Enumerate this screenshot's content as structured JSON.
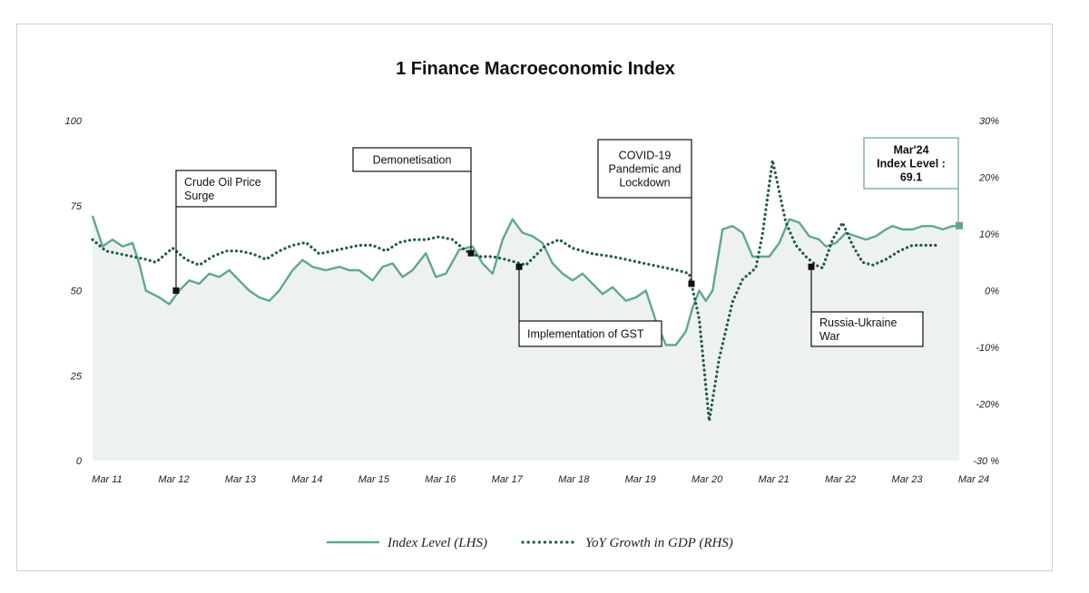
{
  "chart_data": {
    "type": "line",
    "title": "1 Finance Macroeconomic Index",
    "xlabel": "",
    "ylabel_left": "",
    "ylabel_right": "",
    "x_ticks": [
      "Mar 11",
      "Mar 12",
      "Mar 13",
      "Mar 14",
      "Mar 15",
      "Mar 16",
      "Mar 17",
      "Mar 18",
      "Mar 19",
      "Mar 20",
      "Mar 21",
      "Mar 22",
      "Mar 23",
      "Mar 24"
    ],
    "y_left_ticks": [
      "0",
      "25",
      "50",
      "75",
      "100"
    ],
    "y_left_lim": [
      0,
      100
    ],
    "y_right_ticks": [
      "-30 %",
      "-20%",
      "-10%",
      "0%",
      "10%",
      "20%",
      "30%"
    ],
    "y_right_lim": [
      -30,
      30
    ],
    "grid": false,
    "legend_position": "bottom-center",
    "series": [
      {
        "name": "Index Level (LHS)",
        "axis": "left",
        "style": "solid",
        "color": "#5fa88e",
        "x": [
          2011.0,
          2011.15,
          2011.3,
          2011.45,
          2011.6,
          2011.7,
          2011.8,
          2012.0,
          2012.15,
          2012.3,
          2012.45,
          2012.6,
          2012.75,
          2012.9,
          2013.05,
          2013.2,
          2013.35,
          2013.5,
          2013.65,
          2013.8,
          2014.0,
          2014.15,
          2014.3,
          2014.5,
          2014.7,
          2014.85,
          2015.0,
          2015.2,
          2015.35,
          2015.5,
          2015.65,
          2015.8,
          2016.0,
          2016.15,
          2016.3,
          2016.5,
          2016.7,
          2016.85,
          2017.0,
          2017.15,
          2017.3,
          2017.45,
          2017.6,
          2017.75,
          2017.9,
          2018.05,
          2018.2,
          2018.35,
          2018.5,
          2018.65,
          2018.8,
          2019.0,
          2019.15,
          2019.3,
          2019.45,
          2019.6,
          2019.75,
          2019.9,
          2020.0,
          2020.1,
          2020.2,
          2020.3,
          2020.45,
          2020.6,
          2020.75,
          2020.9,
          2021.0,
          2021.15,
          2021.3,
          2021.45,
          2021.6,
          2021.75,
          2021.9,
          2022.0,
          2022.15,
          2022.3,
          2022.45,
          2022.6,
          2022.75,
          2022.9,
          2023.0,
          2023.15,
          2023.3,
          2023.45,
          2023.6,
          2023.75,
          2023.9,
          2024.0
        ],
        "values": [
          72,
          63,
          65,
          63,
          64,
          58,
          50,
          48,
          46,
          50,
          53,
          52,
          55,
          54,
          56,
          53,
          50,
          48,
          47,
          50,
          56,
          59,
          57,
          56,
          57,
          56,
          56,
          53,
          57,
          58,
          54,
          56,
          61,
          54,
          55,
          62,
          63,
          58,
          55,
          65,
          71,
          67,
          66,
          64,
          58,
          55,
          53,
          55,
          52,
          49,
          51,
          47,
          48,
          50,
          41,
          34,
          34,
          38,
          45,
          50,
          47,
          50,
          68,
          69,
          67,
          60,
          60,
          60,
          64,
          71,
          70,
          66,
          65,
          63,
          64,
          67,
          66,
          65,
          66,
          68,
          69,
          68,
          68,
          69,
          69,
          68,
          69,
          69
        ],
        "end_label": {
          "x": 2024.0,
          "value": 69.1
        }
      },
      {
        "name": "YoY Growth in GDP (RHS)",
        "axis": "right",
        "style": "dotted",
        "color": "#1f5c45",
        "x": [
          2011.0,
          2011.2,
          2011.4,
          2011.6,
          2011.8,
          2011.95,
          2012.2,
          2012.4,
          2012.6,
          2012.8,
          2013.0,
          2013.2,
          2013.4,
          2013.6,
          2013.8,
          2014.0,
          2014.2,
          2014.4,
          2014.6,
          2014.8,
          2015.0,
          2015.2,
          2015.4,
          2015.6,
          2015.8,
          2016.0,
          2016.2,
          2016.4,
          2016.6,
          2016.8,
          2017.0,
          2017.2,
          2017.5,
          2017.8,
          2018.0,
          2018.2,
          2018.5,
          2018.8,
          2019.0,
          2019.2,
          2019.4,
          2019.6,
          2019.8,
          2019.95,
          2020.1,
          2020.25,
          2020.4,
          2020.6,
          2020.75,
          2020.85,
          2020.95,
          2021.05,
          2021.2,
          2021.4,
          2021.55,
          2021.7,
          2021.85,
          2021.95,
          2022.1,
          2022.25,
          2022.4,
          2022.55,
          2022.7,
          2022.9,
          2023.1,
          2023.3,
          2023.5,
          2023.7
        ],
        "values": [
          9,
          7,
          6.5,
          6,
          5.5,
          5,
          7.5,
          5.5,
          4.5,
          6,
          7,
          7,
          6.5,
          5.5,
          7,
          8,
          8.5,
          6.5,
          7,
          7.5,
          8,
          8,
          7,
          8.5,
          9,
          9,
          9.5,
          9,
          7,
          6,
          6,
          5.5,
          4.5,
          8,
          9,
          7.5,
          6.5,
          6,
          5.5,
          5,
          4.5,
          4,
          3.5,
          3,
          -5,
          -23,
          -12,
          -2,
          2,
          3,
          4,
          10,
          23,
          12,
          8,
          6,
          4.5,
          4,
          9,
          12,
          8,
          5,
          4.5,
          5.5,
          7,
          8,
          8,
          8
        ]
      }
    ],
    "annotations": [
      {
        "id": "crude-oil",
        "lines": [
          "Crude Oil Price",
          "Surge"
        ],
        "x": 2012.05,
        "series": "Index Level (LHS)",
        "value": 50
      },
      {
        "id": "demonetisation",
        "lines": [
          "Demonetisation"
        ],
        "x": 2016.7,
        "series": "Index Level (LHS)",
        "value": 61
      },
      {
        "id": "gst",
        "lines": [
          "Implementation of GST"
        ],
        "x": 2017.2,
        "series": "Index Level (LHS)",
        "value": 57
      },
      {
        "id": "covid",
        "lines": [
          "COVID-19",
          "Pandemic and",
          "Lockdown"
        ],
        "x": 2019.95,
        "series": "Index Level (LHS)",
        "value": 52
      },
      {
        "id": "russia-ukraine",
        "lines": [
          "Russia-Ukraine",
          "War"
        ],
        "x": 2021.75,
        "series": "Index Level (LHS)",
        "value": 57
      },
      {
        "id": "mar24",
        "lines": [
          "Mar'24",
          "Index Level :",
          "69.1"
        ],
        "x": 2024.0,
        "series": "Index Level (LHS)",
        "value": 69.1
      }
    ]
  }
}
